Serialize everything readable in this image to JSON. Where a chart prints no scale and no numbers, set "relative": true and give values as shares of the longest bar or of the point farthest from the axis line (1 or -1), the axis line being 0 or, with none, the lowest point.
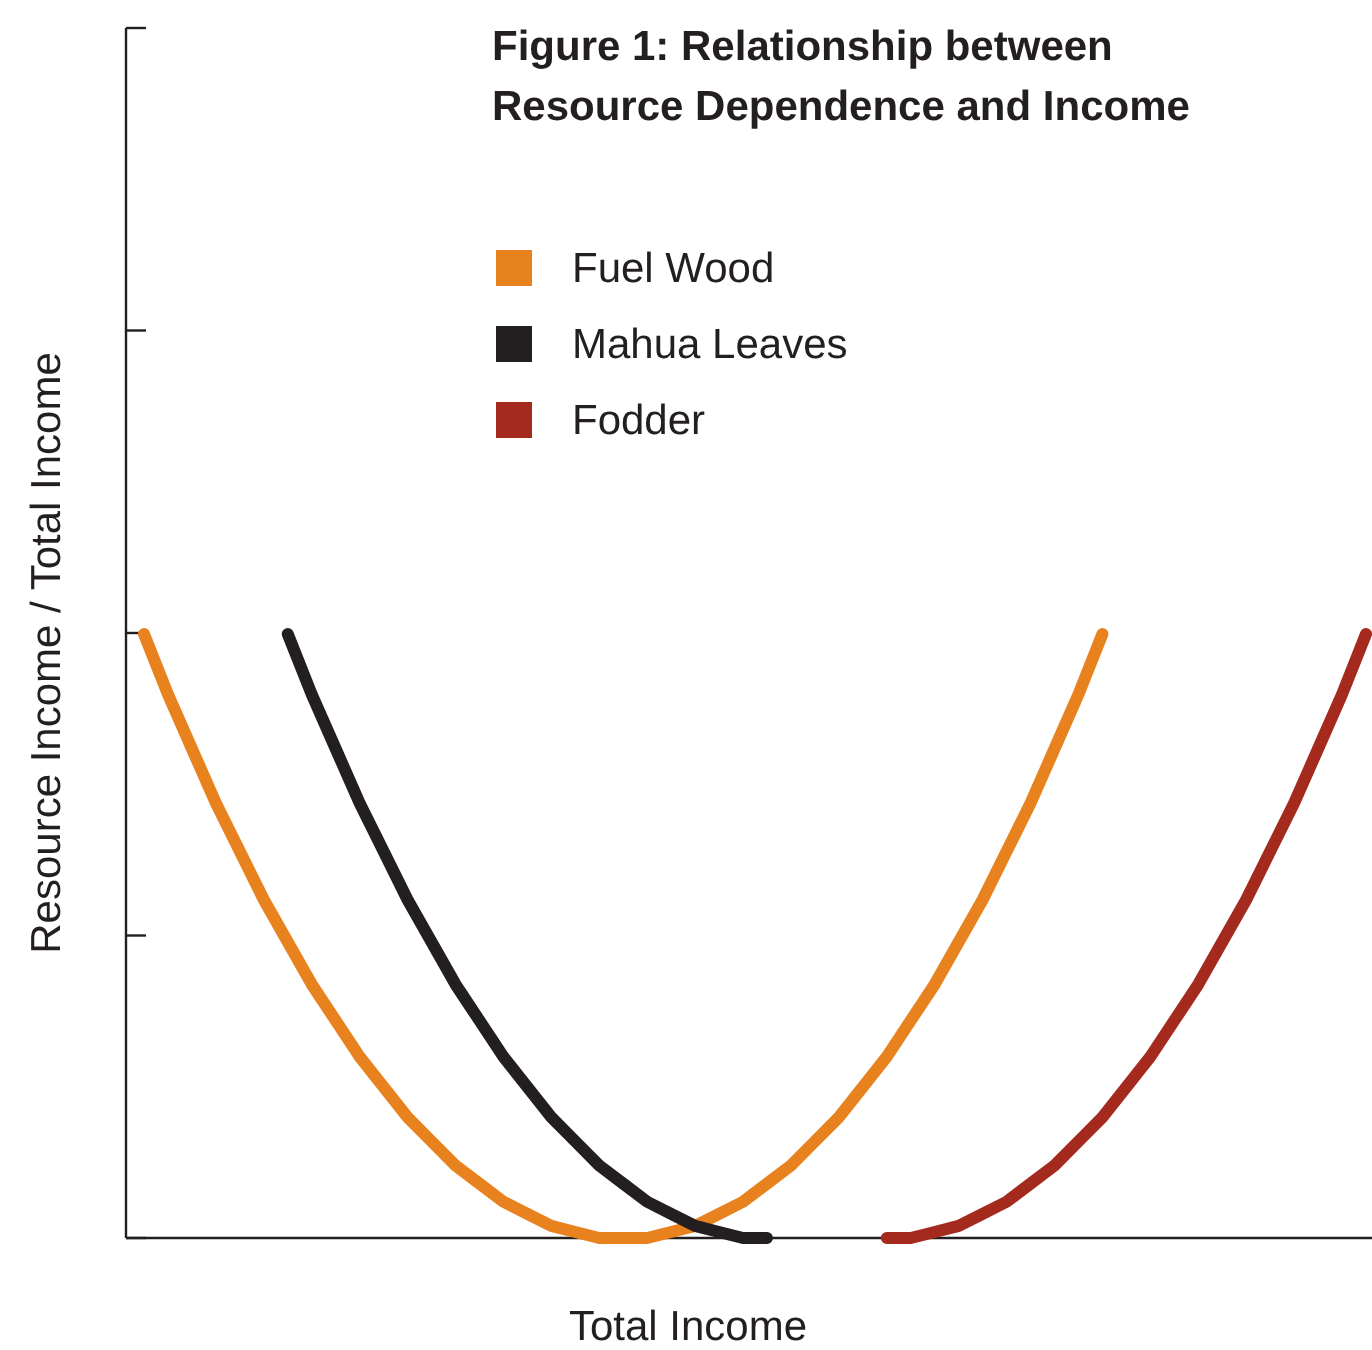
{
  "chart_data": {
    "type": "line",
    "title": "Figure 1: Relationship between Resource Dependence and Income",
    "xlabel": "Total Income",
    "ylabel": "Resource Income / Total Income",
    "relative": true,
    "legend": "top",
    "marker": "none",
    "line_style": "solid",
    "categories": [
      null,
      null,
      null,
      null,
      null,
      null,
      null,
      null,
      null,
      null,
      null,
      null,
      null,
      null,
      null,
      null,
      null,
      null,
      null,
      null,
      null,
      null,
      null,
      null,
      null,
      null,
      null,
      null,
      null,
      null,
      null,
      null,
      null,
      null,
      null,
      null,
      null,
      null,
      null,
      null,
      null,
      null,
      null,
      null,
      null,
      null,
      null,
      null,
      null,
      null,
      null,
      null
    ],
    "series": [
      {
        "name": "Fuel Wood",
        "color": "#e8821e",
        "values": [
          1,
          0.9,
          0.81,
          0.72,
          0.64,
          0.56,
          0.49,
          0.42,
          0.36,
          0.3,
          0.25,
          0.2,
          0.16,
          0.12,
          0.09,
          0.06,
          0.04,
          0.02,
          0.01,
          0,
          0,
          0,
          0.01,
          0.02,
          0.04,
          0.06,
          0.09,
          0.12,
          0.16,
          0.2,
          0.25,
          0.3,
          0.36,
          0.42,
          0.49,
          0.56,
          0.64,
          0.72,
          0.81,
          0.9,
          1,
          null,
          null,
          null,
          null,
          null,
          null,
          null,
          null,
          null,
          null,
          null
        ]
      },
      {
        "name": "Mahua Leaves",
        "color": "#231f20",
        "values": [
          null,
          null,
          null,
          null,
          null,
          null,
          1,
          0.9,
          0.81,
          0.72,
          0.64,
          0.56,
          0.49,
          0.42,
          0.36,
          0.3,
          0.25,
          0.2,
          0.16,
          0.12,
          0.09,
          0.06,
          0.04,
          0.02,
          0.01,
          0,
          0,
          null,
          null,
          null,
          null,
          null,
          null,
          null,
          null,
          null,
          null,
          null,
          null,
          null,
          null,
          null,
          null,
          null,
          null,
          null,
          null,
          null,
          null,
          null,
          null,
          null
        ]
      },
      {
        "name": "Fodder",
        "color": "#a52a1e",
        "values": [
          null,
          null,
          null,
          null,
          null,
          null,
          null,
          null,
          null,
          null,
          null,
          null,
          null,
          null,
          null,
          null,
          null,
          null,
          null,
          null,
          null,
          null,
          null,
          null,
          null,
          null,
          null,
          null,
          null,
          null,
          null,
          0,
          0,
          0.01,
          0.02,
          0.04,
          0.06,
          0.09,
          0.12,
          0.16,
          0.2,
          0.25,
          0.3,
          0.36,
          0.42,
          0.49,
          0.56,
          0.64,
          0.72,
          0.81,
          0.9,
          1
        ]
      }
    ]
  }
}
